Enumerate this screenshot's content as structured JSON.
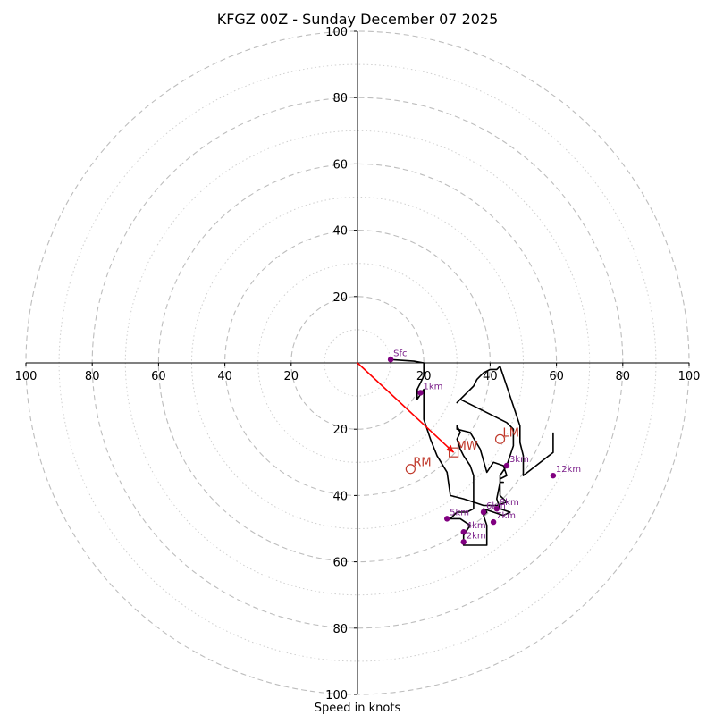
{
  "chart_data": {
    "type": "scatter",
    "subtype": "hodograph",
    "title": "KFGZ 00Z - Sunday December 07 2025",
    "xlabel": "Speed in knots",
    "ylabel": "",
    "units": "knots",
    "xlim": [
      -100,
      100
    ],
    "ylim": [
      -100,
      100
    ],
    "rings": {
      "major": [
        20,
        40,
        60,
        80,
        100
      ],
      "minor": [
        10,
        30,
        50,
        70,
        90
      ]
    },
    "x_tick_labels": [
      "100",
      "80",
      "60",
      "40",
      "20",
      "20",
      "40",
      "60",
      "80",
      "100"
    ],
    "y_tick_labels": [
      "100",
      "80",
      "60",
      "40",
      "20",
      "20",
      "40",
      "60",
      "80",
      "100"
    ],
    "trace_color": "#000000",
    "trace": [
      [
        10,
        1
      ],
      [
        17,
        0.5
      ],
      [
        20,
        0
      ],
      [
        20,
        -4
      ],
      [
        18,
        -8
      ],
      [
        18,
        -11
      ],
      [
        20,
        -8
      ],
      [
        20,
        -12
      ],
      [
        20,
        -17
      ],
      [
        22,
        -23
      ],
      [
        24,
        -28
      ],
      [
        27,
        -33
      ],
      [
        28,
        -40
      ],
      [
        32,
        -41
      ],
      [
        35,
        -42
      ],
      [
        38,
        -43
      ],
      [
        42,
        -43
      ],
      [
        45,
        -42
      ],
      [
        43,
        -40
      ],
      [
        43,
        -35
      ],
      [
        45,
        -34
      ],
      [
        44,
        -31
      ],
      [
        41,
        -30
      ],
      [
        39,
        -33
      ],
      [
        37,
        -26
      ],
      [
        34,
        -21
      ],
      [
        30,
        -20
      ],
      [
        30,
        -19
      ],
      [
        31,
        -21
      ],
      [
        30,
        -23
      ],
      [
        31,
        -26
      ],
      [
        32,
        -28
      ],
      [
        34,
        -31
      ],
      [
        35,
        -34
      ],
      [
        35,
        -40
      ],
      [
        35,
        -44
      ],
      [
        33,
        -45
      ],
      [
        30,
        -45
      ],
      [
        28,
        -47
      ],
      [
        31,
        -47
      ],
      [
        34,
        -49
      ],
      [
        32,
        -52
      ],
      [
        32,
        -55
      ],
      [
        39,
        -55
      ],
      [
        39,
        -49
      ],
      [
        38,
        -46
      ],
      [
        39,
        -45
      ],
      [
        38,
        -44
      ],
      [
        41,
        -45
      ],
      [
        44,
        -46
      ],
      [
        46,
        -45
      ],
      [
        43,
        -44
      ],
      [
        42,
        -41
      ],
      [
        43,
        -36
      ],
      [
        44,
        -36
      ],
      [
        43,
        -36
      ],
      [
        43,
        -34
      ],
      [
        45,
        -31
      ],
      [
        47,
        -25
      ],
      [
        47,
        -20
      ],
      [
        45,
        -18
      ],
      [
        35,
        -13
      ],
      [
        31,
        -11
      ],
      [
        30,
        -12
      ],
      [
        33,
        -9
      ],
      [
        35,
        -7
      ],
      [
        36,
        -5
      ],
      [
        38,
        -3
      ],
      [
        40,
        -2
      ],
      [
        42,
        -2
      ],
      [
        43,
        -1
      ],
      [
        47,
        -13
      ],
      [
        49,
        -19
      ],
      [
        49,
        -24
      ],
      [
        50,
        -28
      ],
      [
        50,
        -34
      ],
      [
        59,
        -27
      ],
      [
        59,
        -22
      ],
      [
        59,
        -21
      ]
    ],
    "height_points_color": "#800080",
    "height_points": [
      {
        "label": "Sfc",
        "x": 10,
        "y": 1
      },
      {
        "label": "1km",
        "x": 19,
        "y": -9
      },
      {
        "label": "3km",
        "x": 45,
        "y": -31
      },
      {
        "label": "12km",
        "x": 59,
        "y": -34
      },
      {
        "label": "5km",
        "x": 27,
        "y": -47
      },
      {
        "label": "6km",
        "x": 38,
        "y": -45
      },
      {
        "label": "7km",
        "x": 41,
        "y": -48
      },
      {
        "label": "4km",
        "x": 32,
        "y": -51
      },
      {
        "label": "2km",
        "x": 32,
        "y": -54
      },
      {
        "label": "8km",
        "x": 42,
        "y": -44
      }
    ],
    "motion_color": "#c0392b",
    "storm_motion": [
      {
        "label": "LM",
        "x": 43,
        "y": -23,
        "marker": "circle"
      },
      {
        "label": "RM",
        "x": 16,
        "y": -32,
        "marker": "circle"
      },
      {
        "label": "MW",
        "x": 29,
        "y": -27,
        "marker": "square"
      }
    ],
    "shear_vector": {
      "from": [
        0,
        0
      ],
      "to": [
        29,
        -27
      ],
      "color": "#ff0000"
    },
    "grid": true
  }
}
